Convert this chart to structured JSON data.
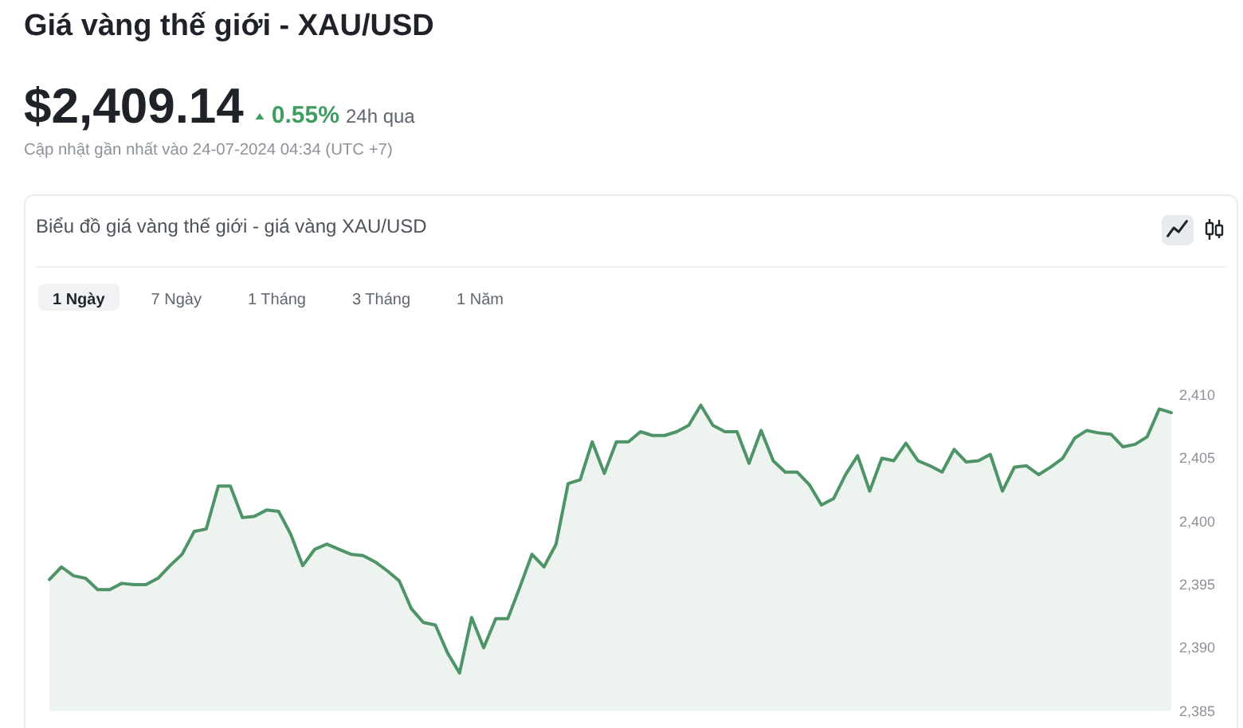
{
  "chart_data": {
    "type": "area",
    "title": "Giá vàng thế giới - XAU/USD",
    "subtitle": "Biểu đồ giá vàng thế giới - giá vàng XAU/USD",
    "annotations": [
      "$2,409.14",
      "0.55%",
      "24h qua",
      "Cập nhật gần nhất vào 24-07-2024 04:34 (UTC +7)",
      "1 Ngày",
      "7 Ngày",
      "1 Tháng",
      "3 Tháng",
      "1 Năm"
    ],
    "categories": [
      null,
      null,
      null,
      null,
      null,
      null,
      null,
      null,
      null,
      null,
      null,
      null,
      null,
      null,
      null,
      null,
      null,
      null,
      null,
      null,
      null,
      null,
      null,
      null,
      null,
      null,
      null,
      null,
      null,
      null,
      null,
      null,
      null,
      null,
      null,
      null,
      null,
      null,
      null,
      null,
      null,
      null,
      null,
      null,
      null,
      null,
      null,
      null,
      null,
      null,
      null,
      null,
      null,
      null,
      null,
      null,
      null,
      null,
      null,
      null,
      null,
      null,
      null,
      null,
      null,
      null,
      null,
      null,
      null,
      null,
      null,
      null,
      null,
      null,
      null,
      null,
      null,
      null,
      null,
      null,
      null,
      null,
      null,
      null,
      null,
      null,
      null,
      null,
      null,
      null,
      null,
      null,
      null,
      null
    ],
    "values": [
      2395.4,
      2396.4,
      2395.7,
      2395.5,
      2394.6,
      2394.6,
      2395.1,
      2395.0,
      2395.0,
      2395.5,
      2396.5,
      2397.4,
      2399.2,
      2399.4,
      2402.8,
      2402.8,
      2400.3,
      2400.4,
      2400.9,
      2400.8,
      2399.0,
      2396.5,
      2397.8,
      2398.2,
      2397.8,
      2397.4,
      2397.3,
      2396.8,
      2396.1,
      2395.3,
      2393.1,
      2392.0,
      2391.8,
      2389.6,
      2388.0,
      2392.4,
      2390.0,
      2392.3,
      2392.3,
      2394.8,
      2397.4,
      2396.4,
      2398.2,
      2403.0,
      2403.3,
      2406.3,
      2403.8,
      2406.3,
      2406.3,
      2407.1,
      2406.8,
      2406.8,
      2407.1,
      2407.6,
      2409.2,
      2407.6,
      2407.1,
      2407.1,
      2404.6,
      2407.2,
      2404.8,
      2403.9,
      2403.9,
      2402.9,
      2401.3,
      2401.8,
      2403.7,
      2405.2,
      2402.4,
      2405.0,
      2404.8,
      2406.2,
      2404.8,
      2404.4,
      2403.9,
      2405.7,
      2404.7,
      2404.8,
      2405.3,
      2402.4,
      2404.3,
      2404.4,
      2403.7,
      2404.3,
      2405.0,
      2406.6,
      2407.2,
      2407.0,
      2406.9,
      2405.9,
      2406.1,
      2406.7,
      2408.9,
      2408.6
    ],
    "color": "#4e9467",
    "ylim": [
      2385,
      2410
    ],
    "yticks": [
      {
        "value": 2385,
        "label": "2,385"
      },
      {
        "value": 2390,
        "label": "2,390"
      },
      {
        "value": 2395,
        "label": "2,395"
      },
      {
        "value": 2400,
        "label": "2,400"
      },
      {
        "value": 2405,
        "label": "2,405"
      },
      {
        "value": 2410,
        "label": "2,410"
      }
    ],
    "tick_labels": "y"
  }
}
